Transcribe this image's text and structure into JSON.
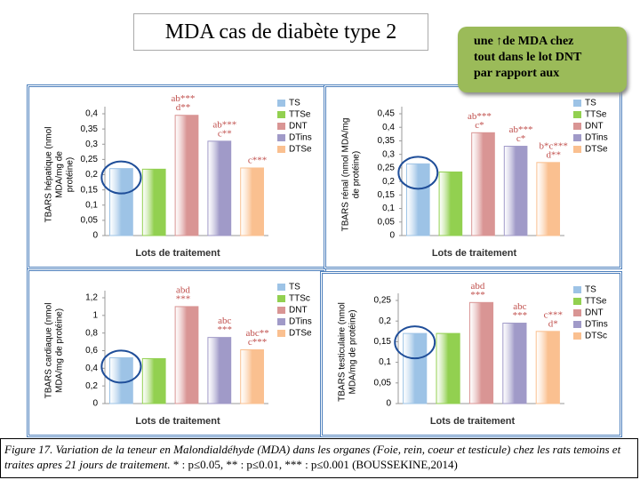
{
  "title": "MDA cas de diabète type 2",
  "callout": [
    "une ↑de MDA chez",
    "tout dans le lot DNT",
    "par rapport aux"
  ],
  "caption": {
    "italic": "Figure 17. Variation de la teneur en Malondialdéhyde (MDA) dans les organes (Foie, rein, coeur et testicule) chez les rats temoins et traites apres 21 jours de traitement. ",
    "normal": "* : p≤0.05, ** : p≤0.01, *** : p≤0.001 (BOUSSEKINE,2014)"
  },
  "chart_data": [
    {
      "type": "bar",
      "y_label": [
        "TBARS hépatique (nmol",
        "MDA/mg de",
        "protéine)"
      ],
      "x_label": "Lots de traitement",
      "categories": [
        "TS",
        "TTSe",
        "DNT",
        "DTins",
        "DTSe"
      ],
      "values": [
        0.22,
        0.218,
        0.395,
        0.31,
        0.222
      ],
      "colors": [
        "#9dc3e6",
        "#92d050",
        "#d99594",
        "#a09ac8",
        "#fac090"
      ],
      "annotations": [
        null,
        null,
        [
          "ab***",
          "d**"
        ],
        [
          "ab***",
          "c**"
        ],
        [
          "c***"
        ]
      ],
      "ylim": [
        0,
        0.4
      ],
      "yticks": [
        0,
        {
          "value": 0.05,
          "label": "0,05"
        },
        {
          "value": 0.1,
          "label": "0,1"
        },
        {
          "value": 0.15,
          "label": "0,15"
        },
        {
          "value": 0.2,
          "label": "0,2"
        },
        {
          "value": 0.25,
          "label": "0,25"
        },
        {
          "value": 0.3,
          "label": "0,3"
        },
        {
          "value": 0.35,
          "label": "0,35"
        },
        {
          "value": 0.4,
          "label": "0,4"
        }
      ],
      "legend": "right"
    },
    {
      "type": "bar",
      "y_label": [
        "TBARS rénal (nmol MDA/mg",
        "de protéine)"
      ],
      "x_label": "Lots de traitement",
      "categories": [
        "TS",
        "TTSe",
        "DNT",
        "DTins",
        "DTSe"
      ],
      "values": [
        0.265,
        0.235,
        0.38,
        0.33,
        0.27
      ],
      "colors": [
        "#9dc3e6",
        "#92d050",
        "#d99594",
        "#a09ac8",
        "#fac090"
      ],
      "annotations": [
        null,
        null,
        [
          "ab***",
          "c*"
        ],
        [
          "ab***",
          "c*"
        ],
        [
          "b*c***",
          "d**"
        ]
      ],
      "ylim": [
        0,
        0.45
      ],
      "yticks": [
        0,
        {
          "value": 0.05,
          "label": "0,05"
        },
        {
          "value": 0.1,
          "label": "0,1"
        },
        {
          "value": 0.15,
          "label": "0,15"
        },
        {
          "value": 0.2,
          "label": "0,2"
        },
        {
          "value": 0.25,
          "label": "0,25"
        },
        {
          "value": 0.3,
          "label": "0,3"
        },
        {
          "value": 0.35,
          "label": "0,35"
        },
        {
          "value": 0.4,
          "label": "0,4"
        },
        {
          "value": 0.45,
          "label": "0,45"
        }
      ],
      "legend": "right"
    },
    {
      "type": "bar",
      "y_label": [
        "TBARS cardiaque (nmol",
        "MDA/mg de protéine)"
      ],
      "x_label": "Lots de traitement",
      "categories": [
        "TS",
        "TTSc",
        "DNT",
        "DTins",
        "DTSe"
      ],
      "values": [
        0.52,
        0.51,
        1.1,
        0.75,
        0.61
      ],
      "colors": [
        "#9dc3e6",
        "#92d050",
        "#d99594",
        "#a09ac8",
        "#fac090"
      ],
      "annotations": [
        null,
        null,
        [
          "abd",
          "***"
        ],
        [
          "abc",
          "***"
        ],
        [
          "abc**",
          "c***"
        ]
      ],
      "ylim": [
        0,
        1.2
      ],
      "yticks": [
        0,
        {
          "value": 0.2,
          "label": "0,2"
        },
        {
          "value": 0.4,
          "label": "0,4"
        },
        {
          "value": 0.6,
          "label": "0,6"
        },
        {
          "value": 0.8,
          "label": "0,8"
        },
        1,
        {
          "value": 1.2,
          "label": "1,2"
        }
      ],
      "legend": "right"
    },
    {
      "type": "bar",
      "y_label": [
        "TBARS testiculaire (nmol",
        "MDA/mg de protéine)"
      ],
      "x_label": "Lots de traitement",
      "categories": [
        "TS",
        "TTSe",
        "DNT",
        "DTins",
        "DTSc"
      ],
      "values": [
        0.17,
        0.17,
        0.245,
        0.195,
        0.175
      ],
      "colors": [
        "#9dc3e6",
        "#92d050",
        "#d99594",
        "#a09ac8",
        "#fac090"
      ],
      "annotations": [
        null,
        null,
        [
          "abd",
          "***"
        ],
        [
          "abc",
          "***"
        ],
        [
          "c***",
          "d*"
        ]
      ],
      "ylim": [
        0,
        0.25
      ],
      "yticks": [
        0,
        {
          "value": 0.05,
          "label": "0,05"
        },
        {
          "value": 0.1,
          "label": "0,1"
        },
        {
          "value": 0.15,
          "label": "0,15"
        },
        {
          "value": 0.2,
          "label": "0,2"
        },
        {
          "value": 0.25,
          "label": "0,25"
        }
      ],
      "legend": "right"
    }
  ]
}
